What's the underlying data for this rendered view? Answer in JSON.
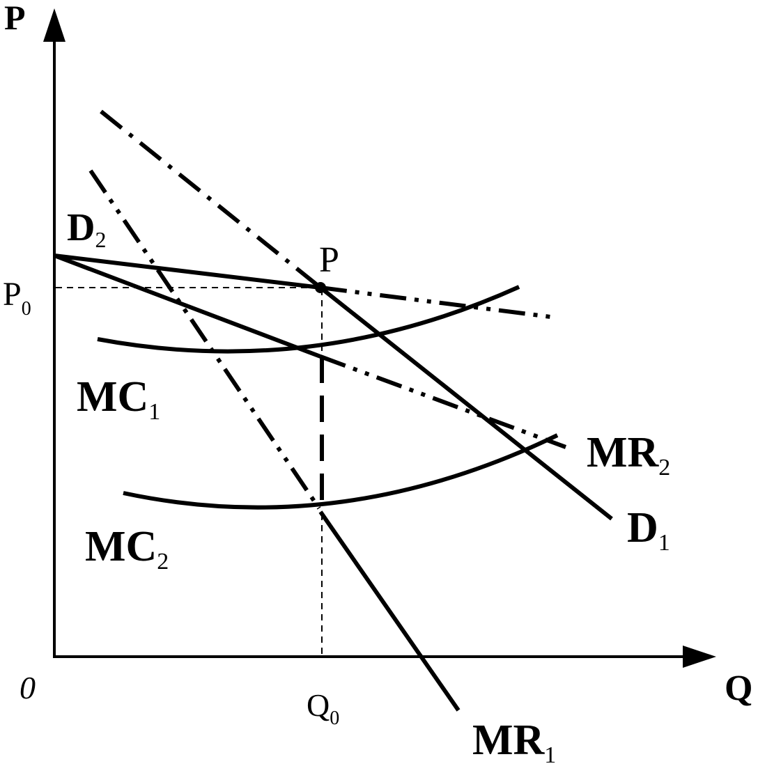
{
  "axes": {
    "y_label": "P",
    "x_label": "Q",
    "origin_label": "0"
  },
  "ticks": {
    "p0": {
      "base": "P",
      "sub": "0"
    },
    "q0": {
      "base": "Q",
      "sub": "0"
    }
  },
  "point": {
    "label": "P"
  },
  "curves": {
    "d1": {
      "base": "D",
      "sub": "1"
    },
    "d2": {
      "base": "D",
      "sub": "2"
    },
    "mr1": {
      "base": "MR",
      "sub": "1"
    },
    "mr2": {
      "base": "MR",
      "sub": "2"
    },
    "mc1": {
      "base": "MC",
      "sub": "1"
    },
    "mc2": {
      "base": "MC",
      "sub": "2"
    }
  }
}
